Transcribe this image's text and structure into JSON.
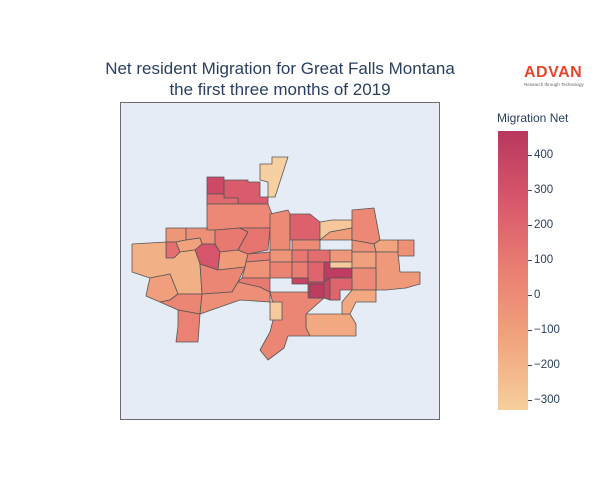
{
  "title_lines": [
    "Net resident Migration for Great Falls Montana",
    "the first three months of 2019"
  ],
  "logo": {
    "word": "ADVAN",
    "tagline": "Research through Technology"
  },
  "colorbar": {
    "title": "Migration Net",
    "ticks": [
      "400",
      "300",
      "200",
      "100",
      "0",
      "−100",
      "−200",
      "−300"
    ],
    "range": [
      -330,
      470
    ],
    "colors": [
      "#f6d2a3",
      "#f1a47d",
      "#ea7f72",
      "#d8576b",
      "#b9375e"
    ]
  },
  "regions": [
    {
      "id": "r01",
      "value": -320
    },
    {
      "id": "r02",
      "value": 350
    },
    {
      "id": "r03",
      "value": 250
    },
    {
      "id": "r04",
      "value": 180
    },
    {
      "id": "r05",
      "value": 20
    },
    {
      "id": "r06",
      "value": -60
    },
    {
      "id": "r07",
      "value": -20
    },
    {
      "id": "r08",
      "value": 150
    },
    {
      "id": "r09",
      "value": -120
    },
    {
      "id": "r10",
      "value": 280
    },
    {
      "id": "r11",
      "value": -180
    },
    {
      "id": "r12",
      "value": -100
    },
    {
      "id": "r13",
      "value": 40
    },
    {
      "id": "r14",
      "value": 60
    },
    {
      "id": "r15",
      "value": 100
    },
    {
      "id": "r16",
      "value": -80
    },
    {
      "id": "r17",
      "value": 30
    },
    {
      "id": "r18",
      "value": -10
    },
    {
      "id": "r19",
      "value": 120
    },
    {
      "id": "r20",
      "value": 70
    },
    {
      "id": "r21",
      "value": -40
    },
    {
      "id": "r22",
      "value": 90
    },
    {
      "id": "r23",
      "value": 10
    },
    {
      "id": "r24",
      "value": 220
    },
    {
      "id": "r25",
      "value": -280
    },
    {
      "id": "r26",
      "value": -50
    },
    {
      "id": "r27",
      "value": 0
    },
    {
      "id": "r28",
      "value": -90
    },
    {
      "id": "r29",
      "value": 50
    },
    {
      "id": "r30",
      "value": 110
    },
    {
      "id": "r31",
      "value": 160
    },
    {
      "id": "r32",
      "value": -60
    },
    {
      "id": "r33",
      "value": 80
    },
    {
      "id": "r34",
      "value": 200
    },
    {
      "id": "r35",
      "value": 440
    },
    {
      "id": "r36",
      "value": 380
    },
    {
      "id": "r37",
      "value": -300
    },
    {
      "id": "r38",
      "value": 20
    },
    {
      "id": "r39",
      "value": -130
    },
    {
      "id": "r40",
      "value": -30
    },
    {
      "id": "r41",
      "value": -110
    },
    {
      "id": "r42",
      "value": -70
    },
    {
      "id": "r43",
      "value": 10
    },
    {
      "id": "r44",
      "value": -20
    },
    {
      "id": "r45",
      "value": -150
    },
    {
      "id": "r46",
      "value": 40
    }
  ]
}
